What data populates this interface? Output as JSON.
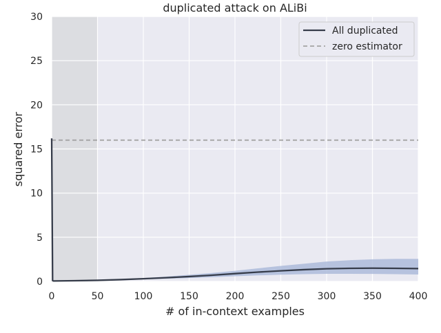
{
  "chart_data": {
    "type": "line",
    "title": "duplicated attack on ALiBi",
    "xlabel": "# of in-context examples",
    "ylabel": "squared error",
    "xlim": [
      0,
      400
    ],
    "ylim": [
      0,
      30
    ],
    "xticks": [
      0,
      50,
      100,
      150,
      200,
      250,
      300,
      350,
      400
    ],
    "yticks": [
      0,
      5,
      10,
      15,
      20,
      25,
      30
    ],
    "grid": true,
    "legend_position": "top-right",
    "shaded_region": {
      "x_start": 0,
      "x_end": 50,
      "color": "#dcdde1"
    },
    "series": [
      {
        "name": "All duplicated",
        "style": "solid",
        "color": "#363c4a",
        "band_color": "#a9b8d8",
        "x": [
          0,
          1,
          2,
          25,
          50,
          75,
          100,
          125,
          150,
          175,
          200,
          225,
          250,
          275,
          300,
          325,
          350,
          375,
          400
        ],
        "y": [
          16.2,
          0.1,
          0.05,
          0.08,
          0.12,
          0.2,
          0.3,
          0.42,
          0.55,
          0.7,
          0.88,
          1.05,
          1.2,
          1.33,
          1.43,
          1.48,
          1.5,
          1.48,
          1.45
        ],
        "y_low": [
          16.2,
          0.05,
          0.02,
          0.04,
          0.08,
          0.14,
          0.22,
          0.3,
          0.38,
          0.48,
          0.58,
          0.68,
          0.76,
          0.82,
          0.86,
          0.86,
          0.85,
          0.82,
          0.78
        ],
        "y_high": [
          16.2,
          0.15,
          0.1,
          0.12,
          0.16,
          0.26,
          0.38,
          0.55,
          0.75,
          0.95,
          1.2,
          1.48,
          1.75,
          2.0,
          2.25,
          2.4,
          2.5,
          2.55,
          2.55
        ]
      },
      {
        "name": "zero estimator",
        "style": "dashed",
        "color": "#a3a3a3",
        "x": [
          0,
          400
        ],
        "y": [
          16,
          16
        ]
      }
    ]
  }
}
